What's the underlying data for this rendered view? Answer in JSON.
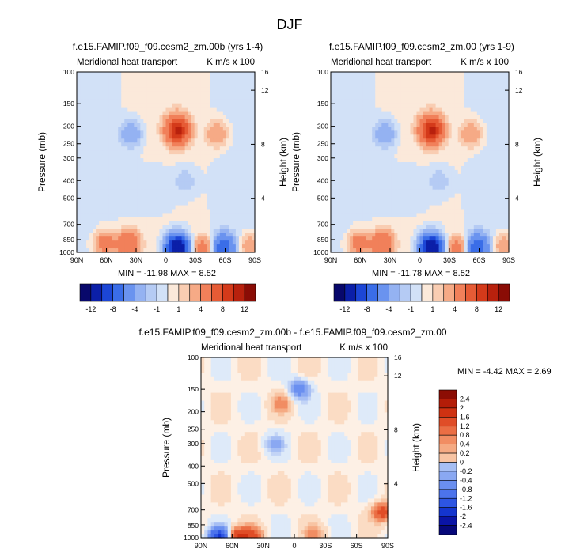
{
  "figure": {
    "title": "DJF"
  },
  "colors": {
    "negative": [
      "#08086b",
      "#0b1fa8",
      "#1c46d6",
      "#3a6de8",
      "#6a93ef",
      "#94b2f2",
      "#b5cbf4",
      "#d2e1f7"
    ],
    "positive": [
      "#fbe9da",
      "#f9cdb2",
      "#f6aa86",
      "#f1805a",
      "#e65b35",
      "#d43a1a",
      "#b8210d",
      "#8a0c05"
    ],
    "diff_scale": [
      "#06087a",
      "#0a14a6",
      "#1435cf",
      "#2d55e3",
      "#4c73ec",
      "#6a8ff0",
      "#8aa8f2",
      "#a7bff4",
      "#c3d4f6",
      "#deeaf9",
      "#fdf0e5",
      "#fbdcc4",
      "#f8c4a3",
      "#f5aa83",
      "#f18d63",
      "#eb6e44",
      "#e04d27",
      "#cf3212",
      "#b41d08",
      "#8c0d04"
    ]
  },
  "chart_data": [
    {
      "type": "heatmap",
      "panel": "top-left",
      "title": "f.e15.FAMIP.f09_f09.cesm2_zm.00b (yrs 1-4)",
      "left_label": "Meridional heat transport",
      "right_label": "K m/s x 100",
      "ylabel": "Pressure (mb)",
      "ylabel_right": "Height (km)",
      "x_ticks": [
        "90N",
        "60N",
        "30N",
        "0",
        "30S",
        "60S",
        "90S"
      ],
      "y_ticks": [
        "100",
        "150",
        "200",
        "250",
        "300",
        "400",
        "500",
        "700",
        "850",
        "1000"
      ],
      "y_ticks_right": [
        "16",
        "12",
        "8",
        "4"
      ],
      "stats": "MIN = -11.98   MAX =   8.52",
      "levels": [
        "-12",
        "-8",
        "-4",
        "-1",
        "1",
        "4",
        "8",
        "12"
      ],
      "features": [
        {
          "lat": -12,
          "p": 210,
          "value": 8.52
        },
        {
          "lat": -12,
          "p": 950,
          "value": -11.98
        },
        {
          "lat": 38,
          "p": 900,
          "value": 4
        },
        {
          "lat": 62,
          "p": 900,
          "value": 3
        },
        {
          "lat": -38,
          "p": 960,
          "value": 3
        },
        {
          "lat": -58,
          "p": 950,
          "value": -6
        },
        {
          "lat": -85,
          "p": 930,
          "value": 2
        },
        {
          "lat": 35,
          "p": 220,
          "value": -2
        },
        {
          "lat": -52,
          "p": 220,
          "value": 2
        },
        {
          "lat": -20,
          "p": 400,
          "value": -1
        }
      ]
    },
    {
      "type": "heatmap",
      "panel": "top-right",
      "title": "f.e15.FAMIP.f09_f09.cesm2_zm.00 (yrs 1-9)",
      "left_label": "Meridional heat transport",
      "right_label": "K m/s x 100",
      "ylabel": "Pressure (mb)",
      "ylabel_right": "Height (km)",
      "x_ticks": [
        "90N",
        "60N",
        "30N",
        "0",
        "30S",
        "60S",
        "90S"
      ],
      "y_ticks": [
        "100",
        "150",
        "200",
        "250",
        "300",
        "400",
        "500",
        "700",
        "850",
        "1000"
      ],
      "y_ticks_right": [
        "16",
        "12",
        "8",
        "4"
      ],
      "stats": "MIN = -11.78   MAX =   8.52",
      "levels": [
        "-12",
        "-8",
        "-4",
        "-1",
        "1",
        "4",
        "8",
        "12"
      ],
      "features": [
        {
          "lat": -12,
          "p": 210,
          "value": 8.52
        },
        {
          "lat": -12,
          "p": 950,
          "value": -11.78
        },
        {
          "lat": 38,
          "p": 900,
          "value": 4
        },
        {
          "lat": 62,
          "p": 900,
          "value": 3
        },
        {
          "lat": -38,
          "p": 960,
          "value": 3
        },
        {
          "lat": -58,
          "p": 950,
          "value": -6
        },
        {
          "lat": -85,
          "p": 930,
          "value": 2
        },
        {
          "lat": 35,
          "p": 220,
          "value": -2
        },
        {
          "lat": -52,
          "p": 220,
          "value": 2
        },
        {
          "lat": -20,
          "p": 400,
          "value": -1
        }
      ]
    },
    {
      "type": "heatmap",
      "panel": "bottom",
      "title": "f.e15.FAMIP.f09_f09.cesm2_zm.00b - f.e15.FAMIP.f09_f09.cesm2_zm.00",
      "left_label": "Meridional heat transport",
      "right_label": "K m/s x 100",
      "ylabel": "Pressure (mb)",
      "ylabel_right": "Height (km)",
      "x_ticks": [
        "90N",
        "60N",
        "30N",
        "0",
        "30S",
        "60S",
        "90S"
      ],
      "y_ticks": [
        "100",
        "150",
        "200",
        "250",
        "300",
        "400",
        "500",
        "700",
        "850",
        "1000"
      ],
      "y_ticks_right": [
        "16",
        "12",
        "8",
        "4"
      ],
      "stats": "MIN =  -4.42   MAX =   2.69",
      "levels": [
        "2.4",
        "2",
        "1.6",
        "1.2",
        "0.8",
        "0.4",
        "0.2",
        "0",
        "-0.2",
        "-0.4",
        "-0.8",
        "-1.2",
        "-1.6",
        "-2",
        "-2.4"
      ],
      "features": [
        {
          "lat": -85,
          "p": 720,
          "value": 1.0
        },
        {
          "lat": 55,
          "p": 990,
          "value": 1.2
        },
        {
          "lat": 72,
          "p": 990,
          "value": -1.6
        },
        {
          "lat": 40,
          "p": 980,
          "value": 0.8
        },
        {
          "lat": -20,
          "p": 950,
          "value": 0.4
        },
        {
          "lat": 20,
          "p": 300,
          "value": -0.4
        },
        {
          "lat": -5,
          "p": 150,
          "value": -0.8
        },
        {
          "lat": 12,
          "p": 180,
          "value": 0.4
        }
      ]
    }
  ]
}
